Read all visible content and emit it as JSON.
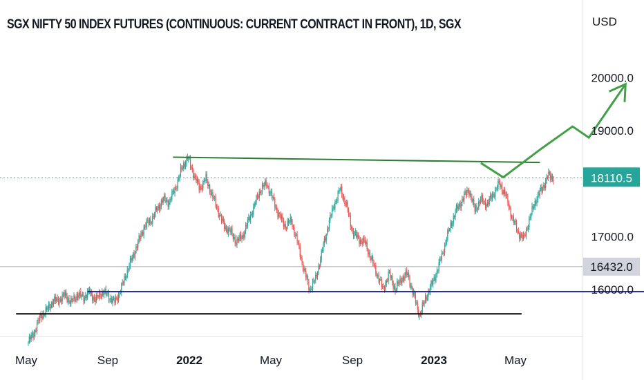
{
  "chart_data": {
    "type": "candlestick",
    "title": "SGX NIFTY 50 INDEX FUTURES (CONTINUOUS: CURRENT CONTRACT IN FRONT), 1D, SGX",
    "currency": "USD",
    "y_ticks": [
      "20000.0",
      "19000.0",
      "17000.0",
      "16000.0"
    ],
    "x_ticks": [
      "May",
      "Sep",
      "2022",
      "May",
      "Sep",
      "2023",
      "May"
    ],
    "ylim": [
      15200,
      20700
    ],
    "last_price": {
      "label": "18110.5",
      "value": 18110.5,
      "color": "#26a69a"
    },
    "marked_level": {
      "label": "16432.0",
      "value": 16432,
      "color": "#b2b5be"
    },
    "levels": [
      {
        "name": "upper-resistance",
        "from": 7.2,
        "to": 25.2,
        "values": [
          18500,
          18400
        ],
        "color": "#2e7d32"
      },
      {
        "name": "support-16000",
        "from": 3.0,
        "to": 33.5,
        "values": [
          15960,
          15960
        ],
        "color": "#1a237e"
      },
      {
        "name": "support-15500",
        "from": -0.5,
        "to": 24.3,
        "values": [
          15540,
          15540
        ],
        "color": "#000000"
      }
    ],
    "projection": {
      "color": "#43a047",
      "points": [
        [
          22.3,
          18390
        ],
        [
          23.4,
          18120
        ],
        [
          25.3,
          18670
        ],
        [
          26.8,
          19080
        ],
        [
          27.6,
          18870
        ],
        [
          29.4,
          19880
        ]
      ]
    },
    "series": [
      {
        "month": 0.1,
        "value": 15000
      },
      {
        "month": 0.4,
        "value": 15200
      },
      {
        "month": 0.7,
        "value": 15500
      },
      {
        "month": 1.0,
        "value": 15600
      },
      {
        "month": 1.3,
        "value": 15780
      },
      {
        "month": 1.6,
        "value": 15800
      },
      {
        "month": 1.9,
        "value": 15900
      },
      {
        "month": 2.2,
        "value": 15750
      },
      {
        "month": 2.5,
        "value": 15900
      },
      {
        "month": 2.8,
        "value": 15850
      },
      {
        "month": 3.1,
        "value": 15950
      },
      {
        "month": 3.4,
        "value": 15800
      },
      {
        "month": 3.7,
        "value": 15950
      },
      {
        "month": 4.0,
        "value": 15900
      },
      {
        "month": 4.3,
        "value": 15750
      },
      {
        "month": 4.6,
        "value": 15950
      },
      {
        "month": 4.9,
        "value": 16300
      },
      {
        "month": 5.2,
        "value": 16600
      },
      {
        "month": 5.5,
        "value": 16900
      },
      {
        "month": 5.8,
        "value": 17200
      },
      {
        "month": 6.1,
        "value": 17300
      },
      {
        "month": 6.4,
        "value": 17500
      },
      {
        "month": 6.7,
        "value": 17700
      },
      {
        "month": 7.0,
        "value": 17650
      },
      {
        "month": 7.3,
        "value": 17900
      },
      {
        "month": 7.6,
        "value": 18250
      },
      {
        "month": 7.9,
        "value": 18500
      },
      {
        "month": 8.2,
        "value": 18200
      },
      {
        "month": 8.5,
        "value": 17900
      },
      {
        "month": 8.8,
        "value": 18100
      },
      {
        "month": 9.1,
        "value": 17800
      },
      {
        "month": 9.4,
        "value": 17500
      },
      {
        "month": 9.7,
        "value": 17200
      },
      {
        "month": 10.0,
        "value": 17100
      },
      {
        "month": 10.3,
        "value": 16900
      },
      {
        "month": 10.6,
        "value": 17000
      },
      {
        "month": 10.9,
        "value": 17300
      },
      {
        "month": 11.2,
        "value": 17600
      },
      {
        "month": 11.5,
        "value": 17900
      },
      {
        "month": 11.8,
        "value": 18000
      },
      {
        "month": 12.1,
        "value": 17700
      },
      {
        "month": 12.4,
        "value": 17400
      },
      {
        "month": 12.7,
        "value": 17200
      },
      {
        "month": 13.0,
        "value": 17300
      },
      {
        "month": 13.3,
        "value": 16900
      },
      {
        "month": 13.6,
        "value": 16400
      },
      {
        "month": 13.9,
        "value": 16000
      },
      {
        "month": 14.2,
        "value": 16200
      },
      {
        "month": 14.5,
        "value": 16700
      },
      {
        "month": 14.8,
        "value": 17200
      },
      {
        "month": 15.1,
        "value": 17600
      },
      {
        "month": 15.4,
        "value": 17900
      },
      {
        "month": 15.7,
        "value": 17600
      },
      {
        "month": 16.0,
        "value": 17100
      },
      {
        "month": 16.3,
        "value": 16950
      },
      {
        "month": 16.6,
        "value": 16900
      },
      {
        "month": 16.9,
        "value": 16600
      },
      {
        "month": 17.2,
        "value": 16300
      },
      {
        "month": 17.5,
        "value": 16000
      },
      {
        "month": 17.8,
        "value": 16300
      },
      {
        "month": 18.1,
        "value": 16000
      },
      {
        "month": 18.4,
        "value": 16200
      },
      {
        "month": 18.7,
        "value": 16300
      },
      {
        "month": 19.0,
        "value": 15900
      },
      {
        "month": 19.3,
        "value": 15500
      },
      {
        "month": 19.6,
        "value": 15850
      },
      {
        "month": 19.9,
        "value": 16100
      },
      {
        "month": 20.2,
        "value": 16400
      },
      {
        "month": 20.5,
        "value": 16800
      },
      {
        "month": 20.8,
        "value": 17200
      },
      {
        "month": 21.1,
        "value": 17500
      },
      {
        "month": 21.4,
        "value": 17700
      },
      {
        "month": 21.7,
        "value": 17900
      },
      {
        "month": 22.0,
        "value": 17500
      },
      {
        "month": 22.3,
        "value": 17700
      },
      {
        "month": 22.6,
        "value": 17600
      },
      {
        "month": 22.9,
        "value": 17800
      },
      {
        "month": 23.2,
        "value": 18000
      },
      {
        "month": 23.5,
        "value": 17800
      },
      {
        "month": 23.8,
        "value": 17400
      },
      {
        "month": 24.1,
        "value": 17100
      },
      {
        "month": 24.4,
        "value": 16950
      },
      {
        "month": 24.7,
        "value": 17350
      },
      {
        "month": 25.0,
        "value": 17700
      },
      {
        "month": 25.3,
        "value": 17900
      },
      {
        "month": 25.6,
        "value": 18150
      },
      {
        "month": 25.9,
        "value": 18110
      }
    ]
  }
}
